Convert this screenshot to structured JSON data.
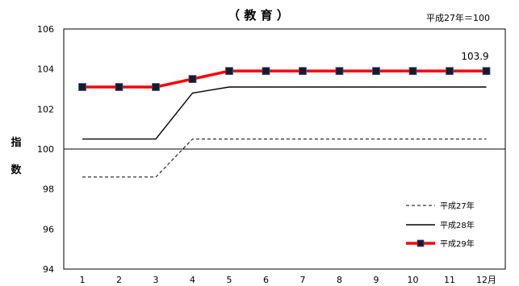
{
  "chart_data": {
    "type": "line",
    "title": "（ 教 育 ）",
    "base_note": "平成27年＝100",
    "ylabel_chars": [
      "指",
      "数"
    ],
    "x": [
      1,
      2,
      3,
      4,
      5,
      6,
      7,
      8,
      9,
      10,
      11,
      12
    ],
    "x_tick_labels": [
      "1",
      "2",
      "3",
      "4",
      "5",
      "6",
      "7",
      "8",
      "9",
      "10",
      "11",
      "12月"
    ],
    "y_ticks": [
      94,
      96,
      98,
      100,
      102,
      104,
      106
    ],
    "ylim": [
      94,
      106
    ],
    "reference_line": 100,
    "grid": false,
    "legend_position": "bottom-right",
    "series": [
      {
        "name": "平成27年",
        "style": "dashed",
        "color": "#000000",
        "values": [
          98.6,
          98.6,
          98.6,
          100.5,
          100.5,
          100.5,
          100.5,
          100.5,
          100.5,
          100.5,
          100.5,
          100.5
        ]
      },
      {
        "name": "平成28年",
        "style": "solid",
        "color": "#000000",
        "values": [
          100.5,
          100.5,
          100.5,
          102.8,
          103.1,
          103.1,
          103.1,
          103.1,
          103.1,
          103.1,
          103.1,
          103.1
        ]
      },
      {
        "name": "平成29年",
        "style": "marker",
        "color": "#ff0000",
        "marker_color": "#1a1a2e",
        "values": [
          103.1,
          103.1,
          103.1,
          103.5,
          103.9,
          103.9,
          103.9,
          103.9,
          103.9,
          103.9,
          103.9,
          103.9
        ]
      }
    ],
    "annotations": [
      {
        "text": "103.9",
        "x": 12,
        "y": 103.9
      }
    ]
  }
}
